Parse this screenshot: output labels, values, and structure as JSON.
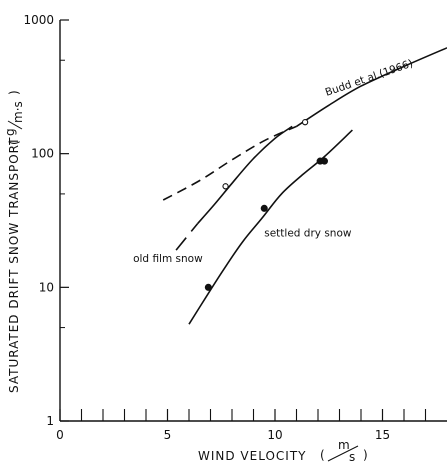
{
  "chart_data": {
    "type": "line",
    "xlabel": "WIND VELOCITY",
    "xunit_num": "m",
    "xunit_den": "s",
    "ylabel": "SATURATED DRIFT SNOW TRANSPORT",
    "yunit_num": "g",
    "yunit_den": "m·s",
    "xlim": [
      0,
      18
    ],
    "ylim": [
      1,
      1000
    ],
    "yscale": "log",
    "x_ticks": [
      0,
      5,
      10,
      15
    ],
    "x_tick_labels": [
      "0",
      "5",
      "10",
      "15"
    ],
    "x_minor_ticks": [
      1,
      2,
      3,
      4,
      6,
      7,
      8,
      9,
      11,
      12,
      13,
      14,
      16,
      17
    ],
    "y_ticks": [
      1,
      10,
      100,
      1000
    ],
    "y_tick_labels": [
      "1",
      "10",
      "100",
      "1000"
    ],
    "grid": false,
    "series": [
      {
        "name": "Budd et al.(1966)",
        "style": "solid",
        "x": [
          11.0,
          12.5,
          14.0,
          16.0,
          18.0
        ],
        "y": [
          160,
          230,
          320,
          450,
          620
        ]
      },
      {
        "name": "Budd et al.(1966)",
        "style": "dashed",
        "x": [
          4.8,
          6.5,
          8.0,
          9.5,
          11.0
        ],
        "y": [
          45,
          63,
          90,
          125,
          160
        ]
      },
      {
        "name": "old film snow",
        "style": "long-dash",
        "x": [
          5.4,
          6.4
        ],
        "y": [
          19,
          30
        ]
      },
      {
        "name": "old film snow",
        "style": "solid",
        "x": [
          6.4,
          7.2,
          8.0,
          9.0,
          10.0,
          10.8
        ],
        "y": [
          30,
          42,
          60,
          92,
          130,
          160
        ]
      },
      {
        "name": "settled dry snow",
        "style": "solid",
        "x": [
          6.0,
          6.8,
          7.6,
          8.5,
          9.4,
          10.3,
          11.3,
          12.3,
          13.6
        ],
        "y": [
          5.3,
          8.5,
          13.5,
          22,
          33,
          50,
          70,
          95,
          150
        ]
      }
    ],
    "markers": [
      {
        "series": "old film snow",
        "fill": "open",
        "x": 7.7,
        "y": 57
      },
      {
        "series": "old film snow",
        "fill": "open",
        "x": 11.4,
        "y": 172
      },
      {
        "series": "settled dry snow",
        "fill": "filled",
        "x": 6.9,
        "y": 10
      },
      {
        "series": "settled dry snow",
        "fill": "filled",
        "x": 9.5,
        "y": 39
      },
      {
        "series": "settled dry snow",
        "fill": "filled",
        "x": 12.1,
        "y": 88
      },
      {
        "series": "settled dry snow",
        "fill": "filled",
        "x": 12.3,
        "y": 88
      }
    ],
    "annotations": [
      {
        "text": "Budd et al.(1966)",
        "x": 12.4,
        "y": 270,
        "rotate": -19
      },
      {
        "text": "old film snow",
        "x": 3.4,
        "y": 15.5,
        "rotate": 0
      },
      {
        "text": "settled dry snow",
        "x": 9.5,
        "y": 24,
        "rotate": 0
      }
    ],
    "colors": {
      "ink": "#111111",
      "background": "#ffffff"
    }
  }
}
